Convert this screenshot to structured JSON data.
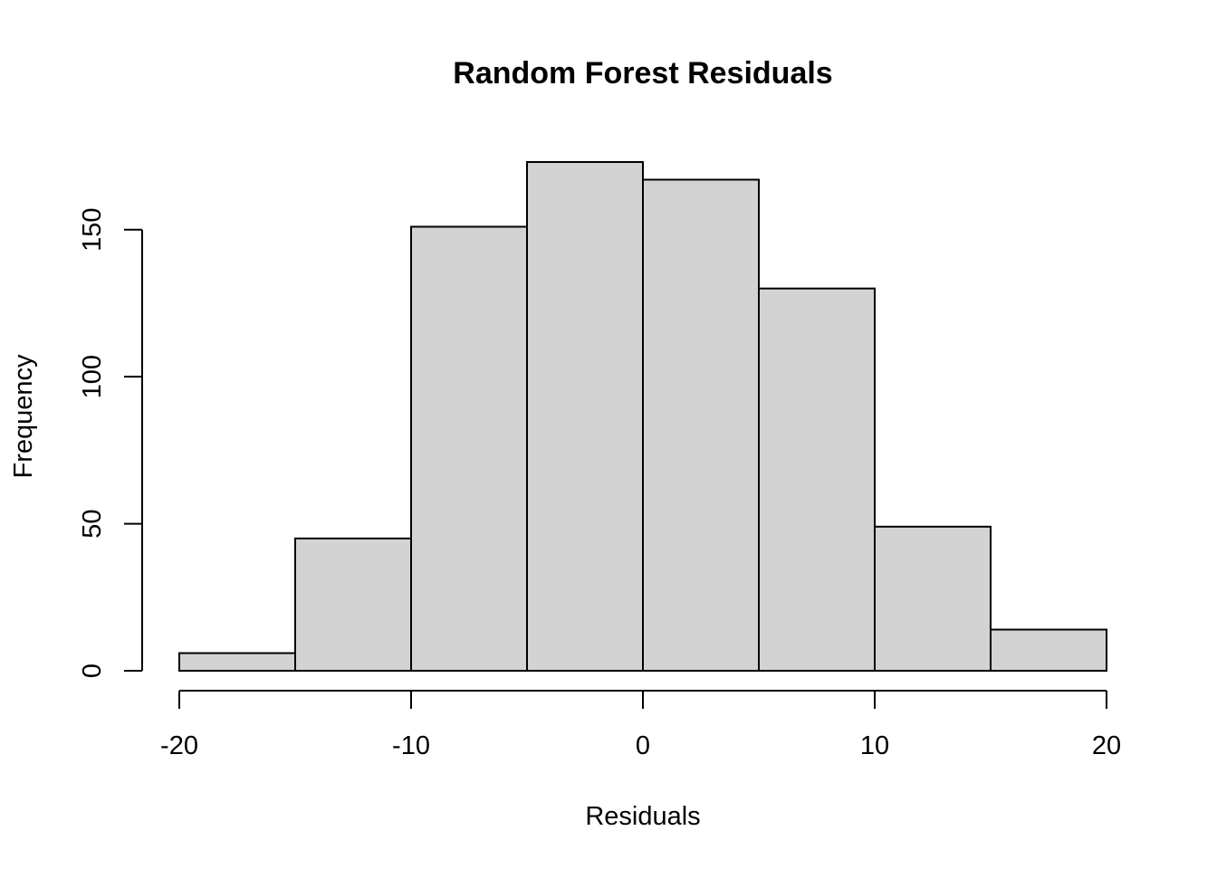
{
  "chart_data": {
    "type": "bar",
    "title": "Random Forest Residuals",
    "xlabel": "Residuals",
    "ylabel": "Frequency",
    "bins": [
      {
        "start": -20,
        "end": -15,
        "count": 6
      },
      {
        "start": -15,
        "end": -10,
        "count": 45
      },
      {
        "start": -10,
        "end": -5,
        "count": 151
      },
      {
        "start": -5,
        "end": 0,
        "count": 173
      },
      {
        "start": 0,
        "end": 5,
        "count": 167
      },
      {
        "start": 5,
        "end": 10,
        "count": 130
      },
      {
        "start": 10,
        "end": 15,
        "count": 49
      },
      {
        "start": 15,
        "end": 20,
        "count": 14
      }
    ],
    "x_ticks": [
      -20,
      -10,
      0,
      10,
      20
    ],
    "x_tick_labels": [
      "-20",
      "-10",
      "0",
      "10",
      "20"
    ],
    "y_ticks": [
      0,
      50,
      100,
      150
    ],
    "y_tick_labels": [
      "0",
      "50",
      "100",
      "150"
    ],
    "xlim": [
      -20,
      20
    ],
    "ylim": [
      0,
      173
    ],
    "grid": false,
    "bar_color": "#d3d3d3",
    "border_color": "#000000"
  }
}
